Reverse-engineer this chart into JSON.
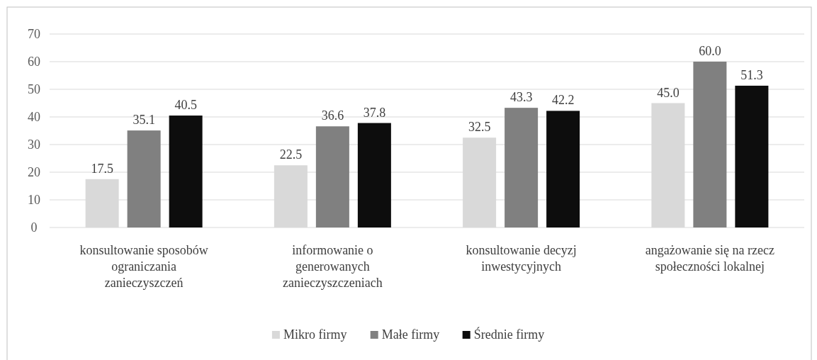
{
  "chart_data": {
    "type": "bar",
    "categories": [
      "konsultowanie sposobów ograniczania zanieczyszczeń",
      "informowanie o generowanych zanieczyszczeniach",
      "konsultowanie decyzj inwestycyjnych",
      "angażowanie się na rzecz społeczności lokalnej"
    ],
    "series": [
      {
        "name": "Mikro firmy",
        "color": "#d9d9d9",
        "values": [
          17.5,
          22.5,
          32.5,
          45.0
        ],
        "value_labels": [
          "17.5",
          "22.5",
          "32.5",
          "45.0"
        ]
      },
      {
        "name": "Małe firmy",
        "color": "#808080",
        "values": [
          35.1,
          36.6,
          43.3,
          60.0
        ],
        "value_labels": [
          "35.1",
          "36.6",
          "43.3",
          "60.0"
        ]
      },
      {
        "name": "Średnie firmy",
        "color": "#0d0d0d",
        "values": [
          40.5,
          37.8,
          42.2,
          51.3
        ],
        "value_labels": [
          "40.5",
          "37.8",
          "42.2",
          "51.3"
        ]
      }
    ],
    "ylim": [
      0,
      70
    ],
    "yticks": [
      0,
      10,
      20,
      30,
      40,
      50,
      60,
      70
    ],
    "grid": "y",
    "legend": "bottom"
  }
}
